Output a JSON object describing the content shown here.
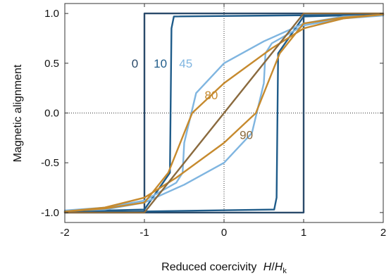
{
  "chart_data": {
    "type": "line",
    "title": "",
    "xlabel": "Reduced coercivity",
    "xlabel_math": {
      "num": "H",
      "den": "H",
      "sub": "k"
    },
    "ylabel": "Magnetic alignment",
    "xlim": [
      -2,
      2
    ],
    "ylim": [
      -1.1,
      1.1
    ],
    "xticks": [
      "-2",
      "-1",
      "0",
      "1",
      "2"
    ],
    "yticks": [
      "-1.0",
      "-0.5",
      "0.0",
      "0.5",
      "1.0"
    ],
    "grid": false,
    "reference_lines": {
      "x": 0,
      "y": 0,
      "style": "dotted"
    },
    "series": [
      {
        "name": "0",
        "color": "#2a4a6a",
        "label_at": [
          -1.12,
          0.5
        ],
        "points": [
          [
            -2,
            -1
          ],
          [
            1,
            -1
          ],
          [
            1,
            1
          ],
          [
            -1,
            1
          ],
          [
            -1,
            -1
          ],
          [
            -2,
            -1
          ]
        ]
      },
      {
        "name": "10",
        "color": "#1f5c8a",
        "label_at": [
          -0.8,
          0.5
        ],
        "points": [
          [
            -2,
            -1
          ],
          [
            0.63,
            -0.97
          ],
          [
            0.66,
            -0.85
          ],
          [
            0.68,
            0.6
          ],
          [
            1,
            0.97
          ],
          [
            2,
            0.99
          ],
          [
            -0.63,
            0.97
          ],
          [
            -0.66,
            0.85
          ],
          [
            -0.68,
            -0.6
          ],
          [
            -1,
            -0.97
          ],
          [
            -2,
            -0.99
          ]
        ]
      },
      {
        "name": "45",
        "color": "#7fb5e0",
        "label_at": [
          -0.48,
          0.5
        ],
        "points": [
          [
            -2,
            -0.98
          ],
          [
            -1.5,
            -0.97
          ],
          [
            -1,
            -0.9
          ],
          [
            -0.5,
            -0.72
          ],
          [
            0,
            -0.5
          ],
          [
            0.35,
            -0.2
          ],
          [
            0.5,
            0.3
          ],
          [
            0.52,
            0.6
          ],
          [
            0.6,
            0.7
          ],
          [
            1,
            0.88
          ],
          [
            1.5,
            0.95
          ],
          [
            2,
            0.98
          ],
          [
            1.5,
            0.97
          ],
          [
            1,
            0.9
          ],
          [
            0.5,
            0.72
          ],
          [
            0,
            0.5
          ],
          [
            -0.35,
            0.2
          ],
          [
            -0.5,
            -0.3
          ],
          [
            -0.52,
            -0.6
          ],
          [
            -0.6,
            -0.7
          ],
          [
            -1,
            -0.88
          ],
          [
            -1.5,
            -0.95
          ],
          [
            -2,
            -0.98
          ]
        ]
      },
      {
        "name": "80",
        "color": "#c68a2e",
        "label_at": [
          -0.16,
          0.18
        ],
        "points": [
          [
            -2,
            -0.99
          ],
          [
            -1.5,
            -0.95
          ],
          [
            -1,
            -0.85
          ],
          [
            -0.6,
            -0.65
          ],
          [
            0,
            -0.3
          ],
          [
            0.4,
            0
          ],
          [
            0.7,
            0.6
          ],
          [
            1,
            0.9
          ],
          [
            1.5,
            0.96
          ],
          [
            2,
            0.99
          ],
          [
            1.5,
            0.95
          ],
          [
            1,
            0.85
          ],
          [
            0.6,
            0.65
          ],
          [
            0,
            0.3
          ],
          [
            -0.4,
            0
          ],
          [
            -0.7,
            -0.6
          ],
          [
            -1,
            -0.9
          ],
          [
            -1.5,
            -0.96
          ],
          [
            -2,
            -0.99
          ]
        ]
      },
      {
        "name": "90",
        "color": "#8a6a3e",
        "label_at": [
          0.28,
          -0.22
        ],
        "points": [
          [
            -2,
            -1
          ],
          [
            -1,
            -1
          ],
          [
            1,
            1
          ],
          [
            2,
            1
          ]
        ]
      }
    ]
  }
}
